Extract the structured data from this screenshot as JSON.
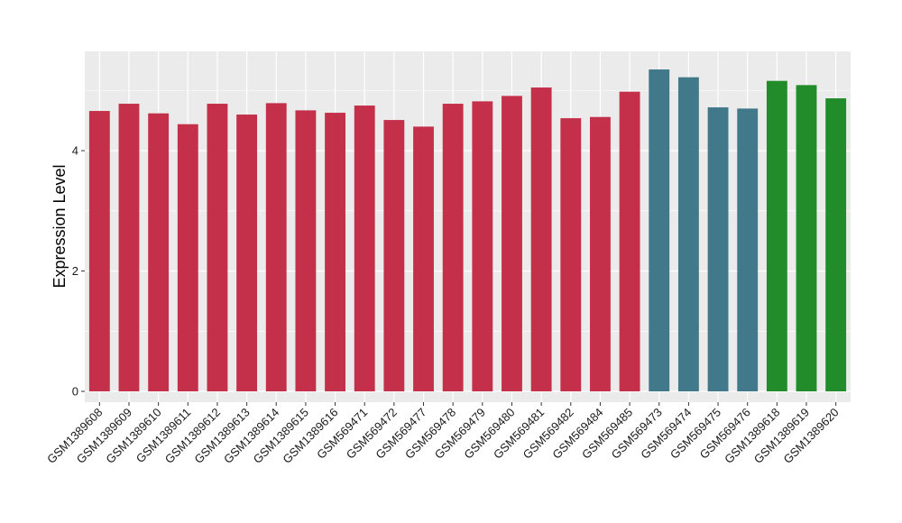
{
  "chart_data": {
    "type": "bar",
    "title": "",
    "xlabel": "",
    "ylabel": "Expression Level",
    "ylim": [
      -0.18,
      5.65
    ],
    "yticks": [
      0,
      2,
      4
    ],
    "grid": true,
    "legend": "none",
    "panel_background": "#EBEBEB",
    "grid_color": "#FFFFFF",
    "categories": [
      "GSM1389608",
      "GSM1389609",
      "GSM1389610",
      "GSM1389611",
      "GSM1389612",
      "GSM1389613",
      "GSM1389614",
      "GSM1389615",
      "GSM1389616",
      "GSM569471",
      "GSM569472",
      "GSM569477",
      "GSM569478",
      "GSM569479",
      "GSM569480",
      "GSM569481",
      "GSM569482",
      "GSM569484",
      "GSM569485",
      "GSM569473",
      "GSM569474",
      "GSM569475",
      "GSM569476",
      "GSM1389618",
      "GSM1389619",
      "GSM1389620"
    ],
    "values": [
      4.66,
      4.78,
      4.62,
      4.44,
      4.78,
      4.6,
      4.79,
      4.67,
      4.63,
      4.75,
      4.51,
      4.4,
      4.78,
      4.82,
      4.91,
      5.05,
      4.54,
      4.56,
      4.98,
      5.35,
      5.22,
      4.72,
      4.7,
      5.16,
      5.09,
      4.87
    ],
    "bar_colors": [
      "#C4304A",
      "#C4304A",
      "#C4304A",
      "#C4304A",
      "#C4304A",
      "#C4304A",
      "#C4304A",
      "#C4304A",
      "#C4304A",
      "#C4304A",
      "#C4304A",
      "#C4304A",
      "#C4304A",
      "#C4304A",
      "#C4304A",
      "#C4304A",
      "#C4304A",
      "#C4304A",
      "#C4304A",
      "#41788A",
      "#41788A",
      "#41788A",
      "#41788A",
      "#228B2A",
      "#228B2A",
      "#228B2A"
    ]
  }
}
